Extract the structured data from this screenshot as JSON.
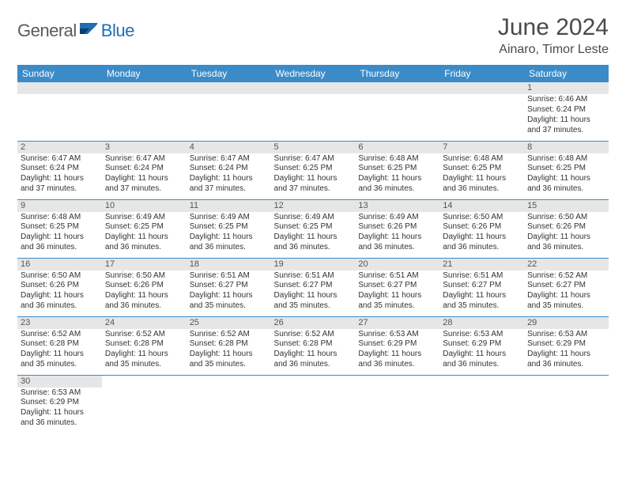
{
  "logo": {
    "word1": "General",
    "word2": "Blue"
  },
  "header": {
    "month": "June 2024",
    "location": "Ainaro, Timor Leste"
  },
  "dayHeaders": [
    "Sunday",
    "Monday",
    "Tuesday",
    "Wednesday",
    "Thursday",
    "Friday",
    "Saturday"
  ],
  "colors": {
    "headerBg": "#3b8bc8",
    "headerText": "#ffffff",
    "dayNumBg": "#e6e6e6",
    "rowBorder": "#3b8bc8",
    "textGray": "#4a4a4a",
    "logoGray": "#5a5a5a",
    "logoBlue": "#1f6fb2"
  },
  "layout": {
    "cols": 7,
    "rows": 6,
    "cellFontSize": 10,
    "dayNumFontSize": 11,
    "headerFontSize": 12
  },
  "weeks": [
    [
      null,
      null,
      null,
      null,
      null,
      null,
      {
        "n": "1",
        "sunrise": "Sunrise: 6:46 AM",
        "sunset": "Sunset: 6:24 PM",
        "day1": "Daylight: 11 hours",
        "day2": "and 37 minutes."
      }
    ],
    [
      {
        "n": "2",
        "sunrise": "Sunrise: 6:47 AM",
        "sunset": "Sunset: 6:24 PM",
        "day1": "Daylight: 11 hours",
        "day2": "and 37 minutes."
      },
      {
        "n": "3",
        "sunrise": "Sunrise: 6:47 AM",
        "sunset": "Sunset: 6:24 PM",
        "day1": "Daylight: 11 hours",
        "day2": "and 37 minutes."
      },
      {
        "n": "4",
        "sunrise": "Sunrise: 6:47 AM",
        "sunset": "Sunset: 6:24 PM",
        "day1": "Daylight: 11 hours",
        "day2": "and 37 minutes."
      },
      {
        "n": "5",
        "sunrise": "Sunrise: 6:47 AM",
        "sunset": "Sunset: 6:25 PM",
        "day1": "Daylight: 11 hours",
        "day2": "and 37 minutes."
      },
      {
        "n": "6",
        "sunrise": "Sunrise: 6:48 AM",
        "sunset": "Sunset: 6:25 PM",
        "day1": "Daylight: 11 hours",
        "day2": "and 36 minutes."
      },
      {
        "n": "7",
        "sunrise": "Sunrise: 6:48 AM",
        "sunset": "Sunset: 6:25 PM",
        "day1": "Daylight: 11 hours",
        "day2": "and 36 minutes."
      },
      {
        "n": "8",
        "sunrise": "Sunrise: 6:48 AM",
        "sunset": "Sunset: 6:25 PM",
        "day1": "Daylight: 11 hours",
        "day2": "and 36 minutes."
      }
    ],
    [
      {
        "n": "9",
        "sunrise": "Sunrise: 6:48 AM",
        "sunset": "Sunset: 6:25 PM",
        "day1": "Daylight: 11 hours",
        "day2": "and 36 minutes."
      },
      {
        "n": "10",
        "sunrise": "Sunrise: 6:49 AM",
        "sunset": "Sunset: 6:25 PM",
        "day1": "Daylight: 11 hours",
        "day2": "and 36 minutes."
      },
      {
        "n": "11",
        "sunrise": "Sunrise: 6:49 AM",
        "sunset": "Sunset: 6:25 PM",
        "day1": "Daylight: 11 hours",
        "day2": "and 36 minutes."
      },
      {
        "n": "12",
        "sunrise": "Sunrise: 6:49 AM",
        "sunset": "Sunset: 6:25 PM",
        "day1": "Daylight: 11 hours",
        "day2": "and 36 minutes."
      },
      {
        "n": "13",
        "sunrise": "Sunrise: 6:49 AM",
        "sunset": "Sunset: 6:26 PM",
        "day1": "Daylight: 11 hours",
        "day2": "and 36 minutes."
      },
      {
        "n": "14",
        "sunrise": "Sunrise: 6:50 AM",
        "sunset": "Sunset: 6:26 PM",
        "day1": "Daylight: 11 hours",
        "day2": "and 36 minutes."
      },
      {
        "n": "15",
        "sunrise": "Sunrise: 6:50 AM",
        "sunset": "Sunset: 6:26 PM",
        "day1": "Daylight: 11 hours",
        "day2": "and 36 minutes."
      }
    ],
    [
      {
        "n": "16",
        "sunrise": "Sunrise: 6:50 AM",
        "sunset": "Sunset: 6:26 PM",
        "day1": "Daylight: 11 hours",
        "day2": "and 36 minutes."
      },
      {
        "n": "17",
        "sunrise": "Sunrise: 6:50 AM",
        "sunset": "Sunset: 6:26 PM",
        "day1": "Daylight: 11 hours",
        "day2": "and 36 minutes."
      },
      {
        "n": "18",
        "sunrise": "Sunrise: 6:51 AM",
        "sunset": "Sunset: 6:27 PM",
        "day1": "Daylight: 11 hours",
        "day2": "and 35 minutes."
      },
      {
        "n": "19",
        "sunrise": "Sunrise: 6:51 AM",
        "sunset": "Sunset: 6:27 PM",
        "day1": "Daylight: 11 hours",
        "day2": "and 35 minutes."
      },
      {
        "n": "20",
        "sunrise": "Sunrise: 6:51 AM",
        "sunset": "Sunset: 6:27 PM",
        "day1": "Daylight: 11 hours",
        "day2": "and 35 minutes."
      },
      {
        "n": "21",
        "sunrise": "Sunrise: 6:51 AM",
        "sunset": "Sunset: 6:27 PM",
        "day1": "Daylight: 11 hours",
        "day2": "and 35 minutes."
      },
      {
        "n": "22",
        "sunrise": "Sunrise: 6:52 AM",
        "sunset": "Sunset: 6:27 PM",
        "day1": "Daylight: 11 hours",
        "day2": "and 35 minutes."
      }
    ],
    [
      {
        "n": "23",
        "sunrise": "Sunrise: 6:52 AM",
        "sunset": "Sunset: 6:28 PM",
        "day1": "Daylight: 11 hours",
        "day2": "and 35 minutes."
      },
      {
        "n": "24",
        "sunrise": "Sunrise: 6:52 AM",
        "sunset": "Sunset: 6:28 PM",
        "day1": "Daylight: 11 hours",
        "day2": "and 35 minutes."
      },
      {
        "n": "25",
        "sunrise": "Sunrise: 6:52 AM",
        "sunset": "Sunset: 6:28 PM",
        "day1": "Daylight: 11 hours",
        "day2": "and 35 minutes."
      },
      {
        "n": "26",
        "sunrise": "Sunrise: 6:52 AM",
        "sunset": "Sunset: 6:28 PM",
        "day1": "Daylight: 11 hours",
        "day2": "and 36 minutes."
      },
      {
        "n": "27",
        "sunrise": "Sunrise: 6:53 AM",
        "sunset": "Sunset: 6:29 PM",
        "day1": "Daylight: 11 hours",
        "day2": "and 36 minutes."
      },
      {
        "n": "28",
        "sunrise": "Sunrise: 6:53 AM",
        "sunset": "Sunset: 6:29 PM",
        "day1": "Daylight: 11 hours",
        "day2": "and 36 minutes."
      },
      {
        "n": "29",
        "sunrise": "Sunrise: 6:53 AM",
        "sunset": "Sunset: 6:29 PM",
        "day1": "Daylight: 11 hours",
        "day2": "and 36 minutes."
      }
    ],
    [
      {
        "n": "30",
        "sunrise": "Sunrise: 6:53 AM",
        "sunset": "Sunset: 6:29 PM",
        "day1": "Daylight: 11 hours",
        "day2": "and 36 minutes."
      },
      null,
      null,
      null,
      null,
      null,
      null
    ]
  ]
}
